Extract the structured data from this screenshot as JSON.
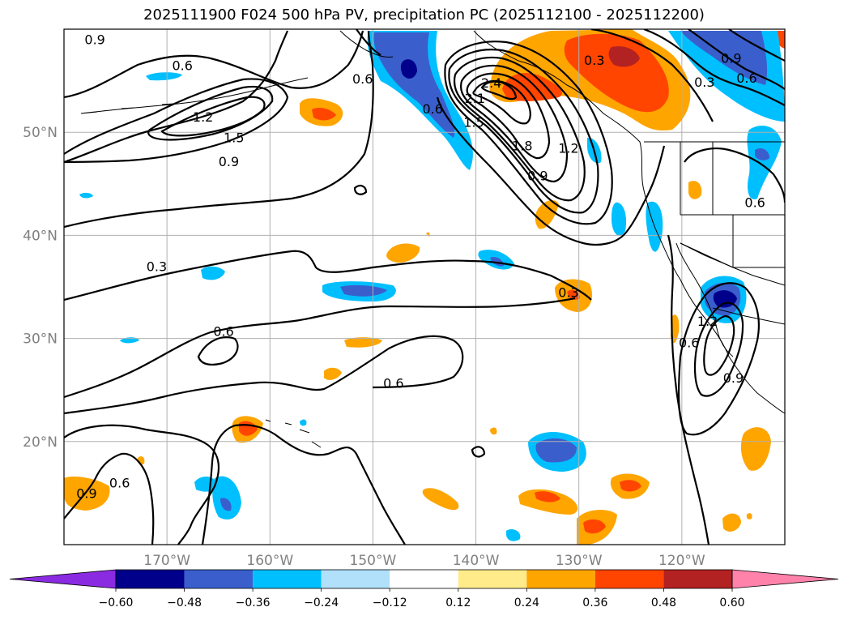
{
  "title": "2025111900 F024 500 hPa PV, precipitation PC (2025112100 - 2025112200)",
  "map": {
    "lon_range": [
      -180,
      -110
    ],
    "lat_range": [
      10,
      60
    ],
    "lat_ticks": [
      {
        "value": 20,
        "label": "20°N"
      },
      {
        "value": 30,
        "label": "30°N"
      },
      {
        "value": 40,
        "label": "40°N"
      },
      {
        "value": 50,
        "label": "50°N"
      }
    ],
    "lon_ticks": [
      {
        "value": -170,
        "label": "170°W"
      },
      {
        "value": -160,
        "label": "160°W"
      },
      {
        "value": -150,
        "label": "150°W"
      },
      {
        "value": -140,
        "label": "140°W"
      },
      {
        "value": -130,
        "label": "130°W"
      },
      {
        "value": -120,
        "label": "120°W"
      }
    ],
    "grid": true,
    "fill_colors": {
      "neg_extreme": "#8a2be2",
      "neg_strong": "#00008b",
      "neg_mid": "#3a5fcd",
      "neg_weak": "#00bfff",
      "neg_faint": "#b0e0fa",
      "pos_faint": "#ffeb8a",
      "pos_weak": "#ffa500",
      "pos_mid": "#ff4500",
      "pos_strong": "#b22222",
      "pos_extreme": "#ff82ab"
    },
    "contour_labels": [
      {
        "text": "0.9",
        "lon": -177,
        "lat": 59
      },
      {
        "text": "0.6",
        "lon": -168.5,
        "lat": 56.5
      },
      {
        "text": "1.2",
        "lon": -166.5,
        "lat": 51.5
      },
      {
        "text": "1.5",
        "lon": -163.5,
        "lat": 49.5
      },
      {
        "text": "0.9",
        "lon": -164,
        "lat": 47.2
      },
      {
        "text": "0.6",
        "lon": -151,
        "lat": 55.2
      },
      {
        "text": "0.3",
        "lon": -171,
        "lat": 37.0
      },
      {
        "text": "0.6",
        "lon": -164.5,
        "lat": 30.7
      },
      {
        "text": "0.6",
        "lon": -148,
        "lat": 25.7
      },
      {
        "text": "0.6",
        "lon": -174.6,
        "lat": 16.0
      },
      {
        "text": "0.9",
        "lon": -177.8,
        "lat": 15.0
      },
      {
        "text": "0.6",
        "lon": -144.2,
        "lat": 52.3
      },
      {
        "text": "2.4",
        "lon": -138.5,
        "lat": 54.8
      },
      {
        "text": "2.1",
        "lon": -140.1,
        "lat": 53.3
      },
      {
        "text": "1.5",
        "lon": -140.2,
        "lat": 51.0
      },
      {
        "text": "1.8",
        "lon": -135.5,
        "lat": 48.7
      },
      {
        "text": "1.2",
        "lon": -131.0,
        "lat": 48.5
      },
      {
        "text": "0.9",
        "lon": -134.0,
        "lat": 45.8
      },
      {
        "text": "0.3",
        "lon": -131.0,
        "lat": 34.5
      },
      {
        "text": "0.3",
        "lon": -128.5,
        "lat": 57.0
      },
      {
        "text": "0.9",
        "lon": -115.2,
        "lat": 57.2
      },
      {
        "text": "0.6",
        "lon": -113.7,
        "lat": 55.3
      },
      {
        "text": "0.3",
        "lon": -117.8,
        "lat": 54.9
      },
      {
        "text": "0.6",
        "lon": -112.9,
        "lat": 43.2
      },
      {
        "text": "0.6",
        "lon": -119.3,
        "lat": 29.6
      },
      {
        "text": "1.2",
        "lon": -117.5,
        "lat": 31.7
      },
      {
        "text": "0.9",
        "lon": -115.0,
        "lat": 26.2
      }
    ]
  },
  "colorbar": {
    "ticks": [
      "−0.60",
      "−0.48",
      "−0.36",
      "−0.24",
      "−0.12",
      "0.12",
      "0.24",
      "0.36",
      "0.48",
      "0.60"
    ],
    "colors": [
      "#8a2be2",
      "#00008b",
      "#3a5fcd",
      "#00bfff",
      "#b0e0fa",
      "#ffffff",
      "#ffeb8a",
      "#ffa500",
      "#ff4500",
      "#b22222",
      "#ff82ab"
    ]
  }
}
